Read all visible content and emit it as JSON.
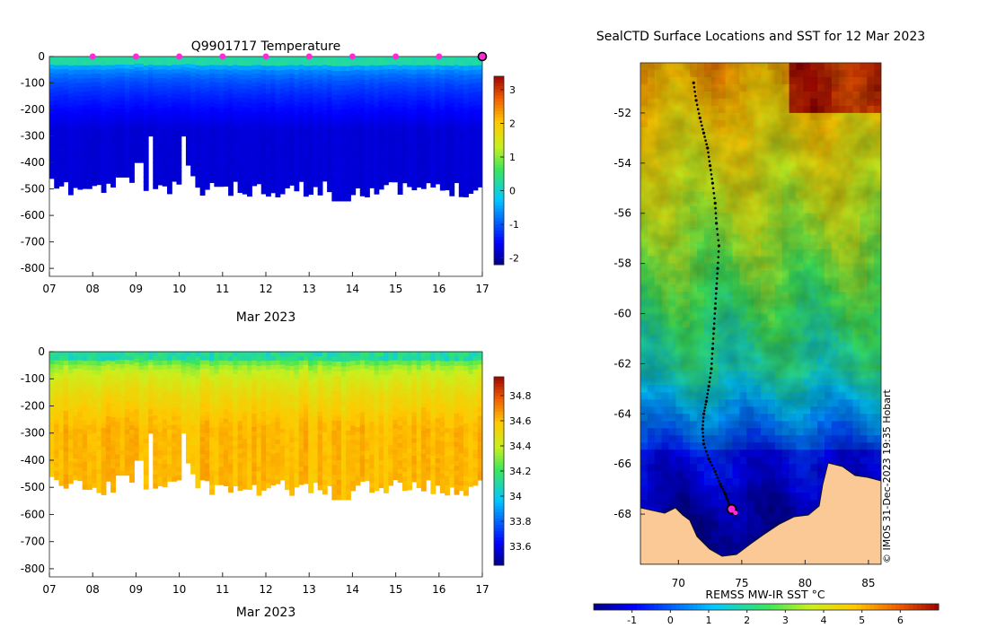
{
  "chart_data": [
    {
      "type": "heatmap",
      "title": "Q9901717  Temperature",
      "xlabel": "Mar 2023",
      "ylabel": "",
      "x_ticks": [
        "07",
        "08",
        "09",
        "10",
        "11",
        "12",
        "13",
        "14",
        "15",
        "16",
        "17"
      ],
      "x_range": [
        7,
        17
      ],
      "y_ticks": [
        0,
        -100,
        -200,
        -300,
        -400,
        -500,
        -600,
        -700,
        -800
      ],
      "y_range": [
        -830,
        0
      ],
      "colorbar": {
        "ticks": [
          3,
          2,
          1,
          0,
          -1,
          -2
        ],
        "range": [
          -2.2,
          3.4
        ]
      },
      "profile_markers_days": [
        8,
        9,
        10,
        11,
        12,
        13,
        14,
        15,
        16
      ],
      "current_marker_day": 17,
      "surface_value": 0.2,
      "deep_value": -1.8
    },
    {
      "type": "heatmap",
      "title": "",
      "xlabel": "Mar 2023",
      "ylabel": "",
      "x_ticks": [
        "07",
        "08",
        "09",
        "10",
        "11",
        "12",
        "13",
        "14",
        "15",
        "16",
        "17"
      ],
      "x_range": [
        7,
        17
      ],
      "y_ticks": [
        0,
        -100,
        -200,
        -300,
        -400,
        -500,
        -600,
        -700,
        -800
      ],
      "y_range": [
        -830,
        0
      ],
      "colorbar": {
        "ticks": [
          34.8,
          34.6,
          34.4,
          34.2,
          34,
          33.8,
          33.6
        ],
        "range": [
          33.45,
          34.95
        ]
      },
      "surface_value": 34.1,
      "deep_value": 34.6
    },
    {
      "type": "heatmap",
      "title": "SealCTD Surface Locations and SST for 12 Mar 2023",
      "xlabel": "",
      "ylabel": "",
      "x_ticks": [
        70,
        75,
        80,
        85
      ],
      "x_range": [
        67,
        86
      ],
      "y_ticks": [
        -52,
        -54,
        -56,
        -58,
        -60,
        -62,
        -64,
        -66,
        -68
      ],
      "y_range": [
        -70,
        -50
      ],
      "colorbar_label": "REMSS MW-IR SST °C",
      "colorbar": {
        "ticks": [
          -1,
          0,
          1,
          2,
          3,
          4,
          5,
          6
        ],
        "range": [
          -2,
          7
        ]
      },
      "copyright": "© IMOS 31-Dec-2023 19:35 Hobart",
      "track_lon": [
        71.2,
        71.4,
        71.7,
        72.0,
        72.3,
        72.5,
        72.7,
        72.9,
        73.0,
        73.2,
        73.1,
        73.0,
        72.9,
        72.8,
        72.7,
        72.6,
        72.4,
        72.2,
        72.0,
        71.9,
        72.0,
        72.4,
        72.9,
        73.3,
        73.7,
        74.0,
        74.2,
        74.5
      ],
      "track_lat": [
        -50.8,
        -51.5,
        -52.2,
        -52.8,
        -53.4,
        -54.1,
        -54.8,
        -55.6,
        -56.4,
        -57.3,
        -58.2,
        -59.0,
        -59.8,
        -60.6,
        -61.4,
        -62.2,
        -62.9,
        -63.5,
        -64.0,
        -64.6,
        -65.2,
        -65.8,
        -66.3,
        -66.8,
        -67.2,
        -67.6,
        -67.8,
        -68.0
      ],
      "current_position": {
        "lon": 74.2,
        "lat": -67.8
      }
    }
  ]
}
